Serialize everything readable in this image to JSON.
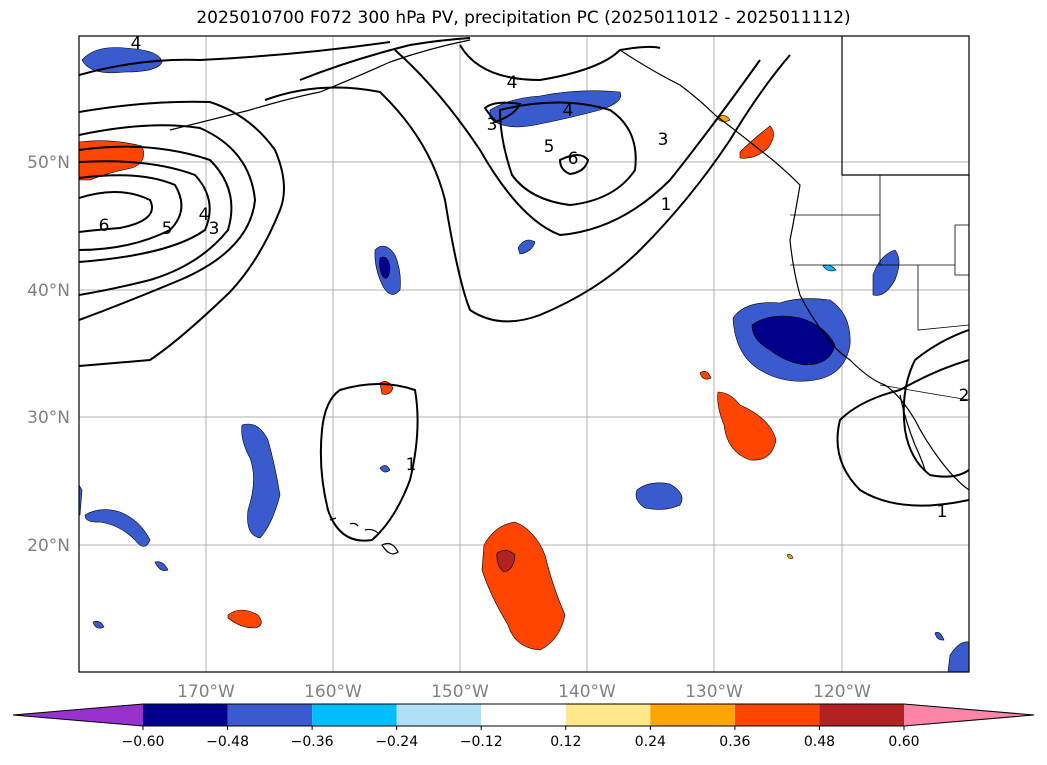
{
  "title": "2025010700 F072 300 hPa PV, precipitation PC (2025011012 - 2025011112)",
  "lat_labels": [
    "50°N",
    "40°N",
    "30°N",
    "20°N"
  ],
  "lon_labels": [
    "170°W",
    "160°W",
    "150°W",
    "140°W",
    "130°W",
    "120°W"
  ],
  "colorbar": {
    "ticks": [
      "−0.60",
      "−0.48",
      "−0.36",
      "−0.24",
      "−0.12",
      "0.12",
      "0.24",
      "0.36",
      "0.48",
      "0.60"
    ],
    "colors": [
      "#9932CC",
      "#00008B",
      "#3A5BCD",
      "#00BFFF",
      "#B0E0F6",
      "#FFFFFF",
      "#FFE88A",
      "#FFA500",
      "#FF4500",
      "#B22222",
      "#FF85A8"
    ]
  },
  "contour_labels": [
    "4",
    "4",
    "3",
    "4",
    "5",
    "6",
    "3",
    "1",
    "6",
    "5",
    "4",
    "3",
    "1",
    "1",
    "2"
  ]
}
